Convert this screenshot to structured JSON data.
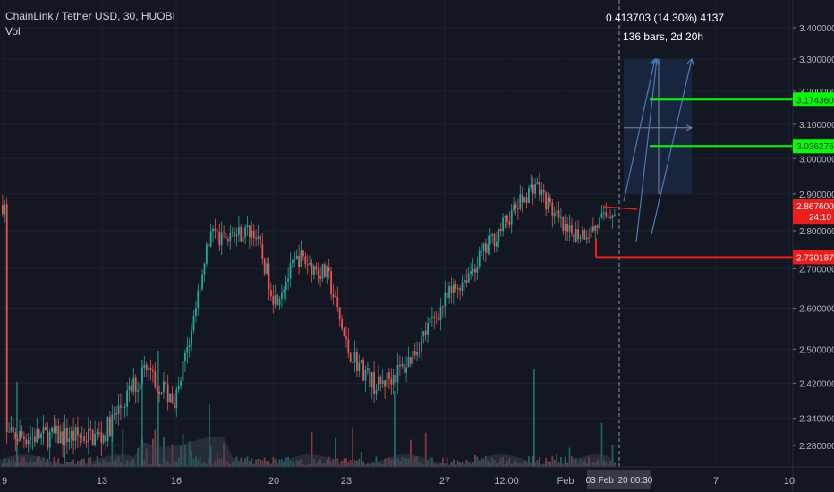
{
  "header": {
    "symbol_line": "ChainLink / Tether USD, 30, HUOBI",
    "volume_label": "Vol"
  },
  "measure": {
    "line1": "0.413703 (14.30%) 4137",
    "line2": "136 bars, 2d 20h"
  },
  "price_axis": {
    "ticks": [
      "3.400000",
      "3.300000",
      "3.200000",
      "3.100000",
      "3.000000",
      "2.900000",
      "2.800000",
      "2.700000",
      "2.600000",
      "2.500000",
      "2.420000",
      "2.340000",
      "2.280000"
    ],
    "tick_values": [
      3.4,
      3.3,
      3.2,
      3.1,
      3.0,
      2.9,
      2.8,
      2.7,
      2.6,
      2.5,
      2.42,
      2.34,
      2.28
    ],
    "labels": [
      {
        "text": "3.174360",
        "value": 3.17436,
        "color": "#00ff00",
        "text_color": "#131722"
      },
      {
        "text": "3.036276",
        "value": 3.036276,
        "color": "#00ff00",
        "text_color": "#131722"
      },
      {
        "text": "2.867600",
        "value": 2.8676,
        "color": "#ef1c1c",
        "text_color": "#ffffff"
      },
      {
        "text": "24:10",
        "value": 2.838,
        "color": "#ef1c1c",
        "text_color": "#ffffff"
      },
      {
        "text": "2.730187",
        "value": 2.730187,
        "color": "#ef1c1c",
        "text_color": "#ffffff"
      }
    ]
  },
  "time_axis": {
    "ticks": [
      "9",
      "13",
      "16",
      "20",
      "23",
      "27",
      "12:00",
      "Feb",
      "7",
      "10"
    ],
    "cursor_label": "03 Feb '20   00:30"
  },
  "chart_data": {
    "type": "candlestick",
    "title": "ChainLink / Tether USD, 30, HUOBI",
    "ylim": [
      2.24,
      3.47
    ],
    "y_scale": "log",
    "colors": {
      "up": "#26a69a",
      "down": "#ef5350",
      "volume": "#3c4150",
      "grid": "#1e2230"
    },
    "price_path": [
      {
        "t": "9",
        "v": 2.3
      },
      {
        "t": "13",
        "v": 2.3
      },
      {
        "t": "15",
        "v": 2.45
      },
      {
        "t": "16",
        "v": 2.38
      },
      {
        "t": "17",
        "v": 2.78
      },
      {
        "t": "19",
        "v": 2.8
      },
      {
        "t": "20",
        "v": 2.62
      },
      {
        "t": "21",
        "v": 2.73
      },
      {
        "t": "22",
        "v": 2.68
      },
      {
        "t": "23",
        "v": 2.5
      },
      {
        "t": "24",
        "v": 2.41
      },
      {
        "t": "25",
        "v": 2.46
      },
      {
        "t": "27",
        "v": 2.62
      },
      {
        "t": "28",
        "v": 2.7
      },
      {
        "t": "12:00",
        "v": 2.83
      },
      {
        "t": "31",
        "v": 2.93
      },
      {
        "t": "Feb",
        "v": 2.79
      },
      {
        "t": "2",
        "v": 2.8
      },
      {
        "t": "3",
        "v": 2.87
      }
    ],
    "horizontal_lines": [
      {
        "value": 3.17436,
        "color": "#00ff00"
      },
      {
        "value": 3.036276,
        "color": "#00ff00"
      },
      {
        "value": 2.730187,
        "color": "#ef1c1c"
      },
      {
        "value": 2.8676,
        "color": "#ef1c1c"
      }
    ],
    "projection": {
      "color": "#4a7bbd",
      "box_fill": "#1b2b45",
      "top": 3.3,
      "bottom": 2.9,
      "mid": 3.09
    }
  }
}
